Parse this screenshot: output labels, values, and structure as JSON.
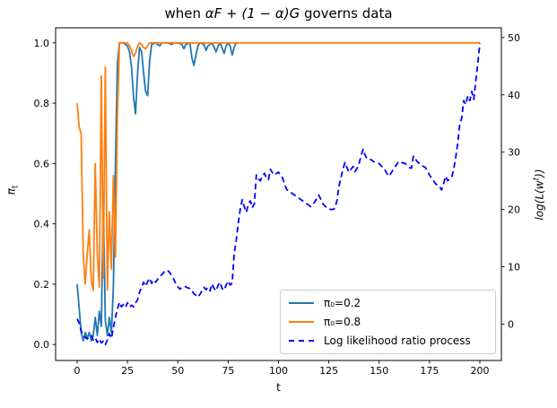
{
  "title": {
    "prefix": "when ",
    "math": "αF + (1 − α)G",
    "suffix": " governs data"
  },
  "axes": {
    "x": {
      "label": "t"
    },
    "y_left": {
      "label_base": "π",
      "label_sub": "t"
    },
    "y_right": {
      "label_prefix": "log(L(w",
      "label_sup": "t",
      "label_suffix": "))"
    }
  },
  "legend": {
    "items": [
      {
        "label": "π₀=0.2",
        "color": "#1f77b4",
        "style": "solid"
      },
      {
        "label": "π₀=0.8",
        "color": "#ff7f0e",
        "style": "solid"
      },
      {
        "label": "Log likelihood ratio process",
        "color": "#0000ff",
        "style": "dashed"
      }
    ]
  },
  "chart_data": {
    "type": "line",
    "title": "when αF + (1 − α)G governs data",
    "xlabel": "t",
    "ylabel_left": "π_t",
    "ylabel_right": "log(L(w^t))",
    "xlim": [
      -10.7,
      210.7
    ],
    "ylim_left": [
      -0.053,
      1.05
    ],
    "ylim_right": [
      -6.36,
      51.7
    ],
    "xticks": [
      0,
      25,
      50,
      75,
      100,
      125,
      150,
      175,
      200
    ],
    "yticks_left": [
      "0.0",
      "0.2",
      "0.4",
      "0.6",
      "0.8",
      "1.0"
    ],
    "yticks_right": [
      0,
      10,
      20,
      30,
      40,
      50
    ],
    "grid": false,
    "legend_position": "lower right inside axes",
    "series": [
      {
        "name": "π₀=0.2",
        "axis": "left",
        "style": "solid",
        "color": "#1f77b4",
        "points": [
          [
            0,
            0.2
          ],
          [
            1,
            0.12
          ],
          [
            2,
            0.04
          ],
          [
            3,
            0.012
          ],
          [
            4,
            0.04
          ],
          [
            5,
            0.02
          ],
          [
            6,
            0.04
          ],
          [
            7,
            0.012
          ],
          [
            8,
            0.03
          ],
          [
            9,
            0.09
          ],
          [
            10,
            0.03
          ],
          [
            11,
            0.11
          ],
          [
            12,
            0.06
          ],
          [
            13,
            0.48
          ],
          [
            14,
            0.08
          ],
          [
            15,
            0.03
          ],
          [
            16,
            0.09
          ],
          [
            17,
            0.04
          ],
          [
            18,
            0.19
          ],
          [
            19,
            0.6
          ],
          [
            20,
            0.93
          ],
          [
            21,
            1.0
          ],
          [
            23,
            1.0
          ],
          [
            25,
            0.99
          ],
          [
            26,
            0.97
          ],
          [
            27,
            0.92
          ],
          [
            28,
            0.82
          ],
          [
            29,
            0.765
          ],
          [
            30,
            0.9
          ],
          [
            31,
            0.985
          ],
          [
            32,
            0.97
          ],
          [
            33,
            0.9
          ],
          [
            34,
            0.84
          ],
          [
            35,
            0.825
          ],
          [
            36,
            0.94
          ],
          [
            37,
            0.995
          ],
          [
            39,
            1.0
          ],
          [
            40,
            0.995
          ],
          [
            41,
            0.99
          ],
          [
            42,
            1.0
          ],
          [
            45,
            1.0
          ],
          [
            47,
            0.995
          ],
          [
            48,
            1.0
          ],
          [
            50,
            1.0
          ],
          [
            52,
            0.995
          ],
          [
            53,
            0.98
          ],
          [
            54,
            0.995
          ],
          [
            56,
            1.0
          ],
          [
            57,
            0.95
          ],
          [
            58,
            0.925
          ],
          [
            59,
            0.96
          ],
          [
            60,
            0.99
          ],
          [
            61,
            1.0
          ],
          [
            63,
            0.995
          ],
          [
            64,
            0.975
          ],
          [
            65,
            0.99
          ],
          [
            67,
            1.0
          ],
          [
            68,
            0.985
          ],
          [
            69,
            0.97
          ],
          [
            70,
            0.99
          ],
          [
            71,
            1.0
          ],
          [
            73,
            0.965
          ],
          [
            74,
            0.99
          ],
          [
            75,
            1.0
          ],
          [
            76,
            0.99
          ],
          [
            77,
            0.96
          ],
          [
            78,
            0.985
          ],
          [
            79,
            1.0
          ],
          [
            80,
            1.0
          ]
        ]
      },
      {
        "name": "π₀=0.8",
        "axis": "left",
        "style": "solid",
        "color": "#ff7f0e",
        "points": [
          [
            0,
            0.8
          ],
          [
            1,
            0.72
          ],
          [
            2,
            0.7
          ],
          [
            3,
            0.3
          ],
          [
            4,
            0.2
          ],
          [
            5,
            0.3
          ],
          [
            6,
            0.38
          ],
          [
            7,
            0.21
          ],
          [
            8,
            0.18
          ],
          [
            9,
            0.6
          ],
          [
            10,
            0.3
          ],
          [
            11,
            0.19
          ],
          [
            12,
            0.89
          ],
          [
            13,
            0.22
          ],
          [
            14,
            0.92
          ],
          [
            15,
            0.18
          ],
          [
            16,
            0.44
          ],
          [
            17,
            0.25
          ],
          [
            18,
            0.56
          ],
          [
            19,
            0.29
          ],
          [
            20,
            0.76
          ],
          [
            21,
            1.0
          ],
          [
            25,
            1.0
          ],
          [
            26,
            0.99
          ],
          [
            27,
            0.975
          ],
          [
            28,
            0.955
          ],
          [
            29,
            0.965
          ],
          [
            30,
            0.99
          ],
          [
            31,
            1.0
          ],
          [
            32,
            0.995
          ],
          [
            33,
            0.985
          ],
          [
            34,
            0.98
          ],
          [
            35,
            0.99
          ],
          [
            36,
            1.0
          ],
          [
            200,
            1.0
          ]
        ]
      },
      {
        "name": "Log likelihood ratio process",
        "axis": "right",
        "style": "dashed",
        "color": "#0000ff",
        "points": [
          [
            0,
            0.9
          ],
          [
            1,
            0.2
          ],
          [
            2,
            -1.2
          ],
          [
            3,
            -2.0
          ],
          [
            4,
            -2.3
          ],
          [
            5,
            -2.6
          ],
          [
            6,
            -2.2
          ],
          [
            7,
            -2.0
          ],
          [
            8,
            -2.8
          ],
          [
            9,
            -2.4
          ],
          [
            10,
            -3.2
          ],
          [
            11,
            -2.6
          ],
          [
            12,
            -3.3
          ],
          [
            13,
            -3.0
          ],
          [
            14,
            -3.6
          ],
          [
            15,
            -2.8
          ],
          [
            16,
            -1.7
          ],
          [
            17,
            -2.5
          ],
          [
            18,
            -0.6
          ],
          [
            19,
            1.2
          ],
          [
            20,
            2.6
          ],
          [
            21,
            3.8
          ],
          [
            22,
            3.0
          ],
          [
            23,
            3.4
          ],
          [
            24,
            2.9
          ],
          [
            25,
            3.7
          ],
          [
            26,
            3.0
          ],
          [
            27,
            3.3
          ],
          [
            28,
            3.0
          ],
          [
            29,
            3.7
          ],
          [
            30,
            4.2
          ],
          [
            31,
            5.6
          ],
          [
            32,
            6.4
          ],
          [
            33,
            7.3
          ],
          [
            34,
            6.6
          ],
          [
            35,
            7.4
          ],
          [
            36,
            8.0
          ],
          [
            37,
            7.1
          ],
          [
            38,
            7.7
          ],
          [
            39,
            7.3
          ],
          [
            40,
            7.8
          ],
          [
            41,
            8.3
          ],
          [
            42,
            8.6
          ],
          [
            43,
            9.0
          ],
          [
            44,
            9.4
          ],
          [
            45,
            9.3
          ],
          [
            46,
            9.0
          ],
          [
            47,
            8.4
          ],
          [
            48,
            7.8
          ],
          [
            49,
            7.0
          ],
          [
            50,
            6.5
          ],
          [
            51,
            6.1
          ],
          [
            52,
            6.4
          ],
          [
            53,
            6.6
          ],
          [
            54,
            6.5
          ],
          [
            55,
            6.3
          ],
          [
            56,
            6.2
          ],
          [
            57,
            5.8
          ],
          [
            58,
            5.3
          ],
          [
            59,
            5.0
          ],
          [
            60,
            4.7
          ],
          [
            61,
            5.2
          ],
          [
            62,
            5.8
          ],
          [
            63,
            6.4
          ],
          [
            64,
            6.0
          ],
          [
            65,
            6.4
          ],
          [
            66,
            5.8
          ],
          [
            67,
            7.0
          ],
          [
            68,
            6.2
          ],
          [
            69,
            5.8
          ],
          [
            70,
            6.8
          ],
          [
            71,
            7.3
          ],
          [
            72,
            6.2
          ],
          [
            73,
            5.9
          ],
          [
            74,
            6.8
          ],
          [
            75,
            7.5
          ],
          [
            76,
            6.8
          ],
          [
            77,
            7.2
          ],
          [
            78,
            12.3
          ],
          [
            79,
            14.7
          ],
          [
            80,
            17.5
          ],
          [
            81,
            20.0
          ],
          [
            82,
            21.7
          ],
          [
            83,
            20.5
          ],
          [
            84,
            19.5
          ],
          [
            85,
            20.8
          ],
          [
            86,
            21.5
          ],
          [
            87,
            20.3
          ],
          [
            88,
            21.0
          ],
          [
            89,
            26.0
          ],
          [
            90,
            25.3
          ],
          [
            91,
            25.0
          ],
          [
            92,
            25.8
          ],
          [
            93,
            26.3
          ],
          [
            94,
            25.5
          ],
          [
            95,
            25.2
          ],
          [
            96,
            27.0
          ],
          [
            97,
            26.4
          ],
          [
            98,
            26.0
          ],
          [
            99,
            26.3
          ],
          [
            100,
            26.5
          ],
          [
            101,
            26.0
          ],
          [
            102,
            25.5
          ],
          [
            103,
            24.5
          ],
          [
            104,
            23.5
          ],
          [
            106,
            23.0
          ],
          [
            108,
            22.5
          ],
          [
            110,
            22.0
          ],
          [
            112,
            21.5
          ],
          [
            114,
            21.0
          ],
          [
            116,
            20.5
          ],
          [
            118,
            21.3
          ],
          [
            120,
            22.5
          ],
          [
            121,
            21.8
          ],
          [
            122,
            21.0
          ],
          [
            123,
            20.6
          ],
          [
            124,
            20.3
          ],
          [
            125,
            20.1
          ],
          [
            126,
            20.0
          ],
          [
            127,
            20.0
          ],
          [
            128,
            20.2
          ],
          [
            129,
            21.5
          ],
          [
            130,
            24.0
          ],
          [
            131,
            25.5
          ],
          [
            132,
            27.0
          ],
          [
            133,
            28.2
          ],
          [
            134,
            27.3
          ],
          [
            135,
            26.5
          ],
          [
            136,
            27.0
          ],
          [
            137,
            27.5
          ],
          [
            138,
            26.6
          ],
          [
            139,
            27.2
          ],
          [
            140,
            28.0
          ],
          [
            141,
            29.3
          ],
          [
            142,
            30.5
          ],
          [
            143,
            29.5
          ],
          [
            144,
            28.8
          ],
          [
            145,
            28.7
          ],
          [
            146,
            28.7
          ],
          [
            147,
            28.4
          ],
          [
            148,
            28.2
          ],
          [
            149,
            28.1
          ],
          [
            150,
            28.0
          ],
          [
            151,
            27.6
          ],
          [
            152,
            27.3
          ],
          [
            153,
            26.8
          ],
          [
            154,
            26.2
          ],
          [
            155,
            25.8
          ],
          [
            156,
            26.4
          ],
          [
            157,
            27.0
          ],
          [
            158,
            27.5
          ],
          [
            159,
            28.0
          ],
          [
            160,
            28.4
          ],
          [
            161,
            28.2
          ],
          [
            162,
            28.1
          ],
          [
            163,
            28.0
          ],
          [
            164,
            27.6
          ],
          [
            165,
            27.3
          ],
          [
            166,
            27.2
          ],
          [
            167,
            29.3
          ],
          [
            168,
            28.8
          ],
          [
            169,
            28.3
          ],
          [
            170,
            28.0
          ],
          [
            171,
            27.8
          ],
          [
            172,
            27.5
          ],
          [
            173,
            27.3
          ],
          [
            174,
            26.6
          ],
          [
            175,
            26.0
          ],
          [
            176,
            25.5
          ],
          [
            177,
            25.0
          ],
          [
            178,
            24.5
          ],
          [
            179,
            24.2
          ],
          [
            180,
            24.0
          ],
          [
            181,
            23.4
          ],
          [
            182,
            24.5
          ],
          [
            183,
            25.8
          ],
          [
            184,
            25.0
          ],
          [
            185,
            25.3
          ],
          [
            186,
            25.6
          ],
          [
            187,
            27.0
          ],
          [
            188,
            29.0
          ],
          [
            189,
            31.5
          ],
          [
            190,
            34.7
          ],
          [
            191,
            36.0
          ],
          [
            192,
            39.0
          ],
          [
            193,
            38.3
          ],
          [
            194,
            39.8
          ],
          [
            195,
            39.0
          ],
          [
            196,
            40.6
          ],
          [
            197,
            39.2
          ],
          [
            198,
            42.5
          ],
          [
            199,
            45.5
          ],
          [
            200,
            49.0
          ]
        ]
      }
    ]
  }
}
